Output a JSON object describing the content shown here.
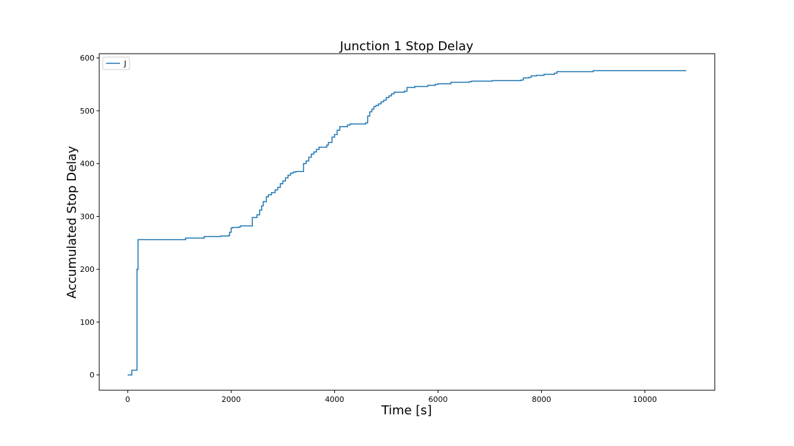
{
  "chart_data": {
    "type": "line",
    "title": "Junction 1 Stop Delay",
    "xlabel": "Time [s]",
    "ylabel": "Accumulated Stop Delay",
    "xlim": [
      -550,
      11350
    ],
    "ylim": [
      -29,
      608
    ],
    "xticks": [
      0,
      2000,
      4000,
      6000,
      8000,
      10000
    ],
    "yticks": [
      0,
      100,
      200,
      300,
      400,
      500,
      600
    ],
    "grid": false,
    "legend_position": "top-left",
    "series": [
      {
        "name": "J",
        "color": "#1f77b4",
        "step": true,
        "x": [
          0,
          80,
          80,
          180,
          180,
          200,
          1100,
          1120,
          1450,
          1480,
          1800,
          1950,
          1970,
          2000,
          2020,
          2150,
          2180,
          2400,
          2410,
          2500,
          2550,
          2590,
          2620,
          2680,
          2720,
          2780,
          2850,
          2900,
          2950,
          3000,
          3050,
          3100,
          3150,
          3200,
          3250,
          3400,
          3450,
          3500,
          3550,
          3600,
          3650,
          3700,
          3850,
          3880,
          3950,
          4000,
          4050,
          4100,
          4250,
          4300,
          4600,
          4640,
          4680,
          4720,
          4760,
          4800,
          4850,
          4900,
          4950,
          5000,
          5050,
          5100,
          5150,
          5350,
          5400,
          5550,
          5800,
          5950,
          6000,
          6250,
          6600,
          6650,
          7050,
          7600,
          7650,
          7750,
          7800,
          7900,
          8050,
          8250,
          8300,
          8950,
          9000,
          10800
        ],
        "y": [
          0,
          0,
          9,
          9,
          200,
          256,
          256,
          259,
          259,
          262,
          263,
          264,
          270,
          278,
          279,
          280,
          282,
          282,
          298,
          303,
          312,
          320,
          328,
          337,
          341,
          345,
          350,
          355,
          362,
          367,
          373,
          378,
          382,
          384,
          385,
          400,
          405,
          412,
          418,
          422,
          427,
          431,
          435,
          440,
          450,
          455,
          463,
          470,
          473,
          475,
          477,
          490,
          498,
          503,
          508,
          510,
          513,
          517,
          520,
          525,
          528,
          532,
          535,
          537,
          544,
          546,
          548,
          550,
          551,
          554,
          555,
          556,
          557,
          558,
          562,
          563,
          566,
          567,
          569,
          571,
          574,
          574,
          576,
          576
        ]
      }
    ]
  }
}
